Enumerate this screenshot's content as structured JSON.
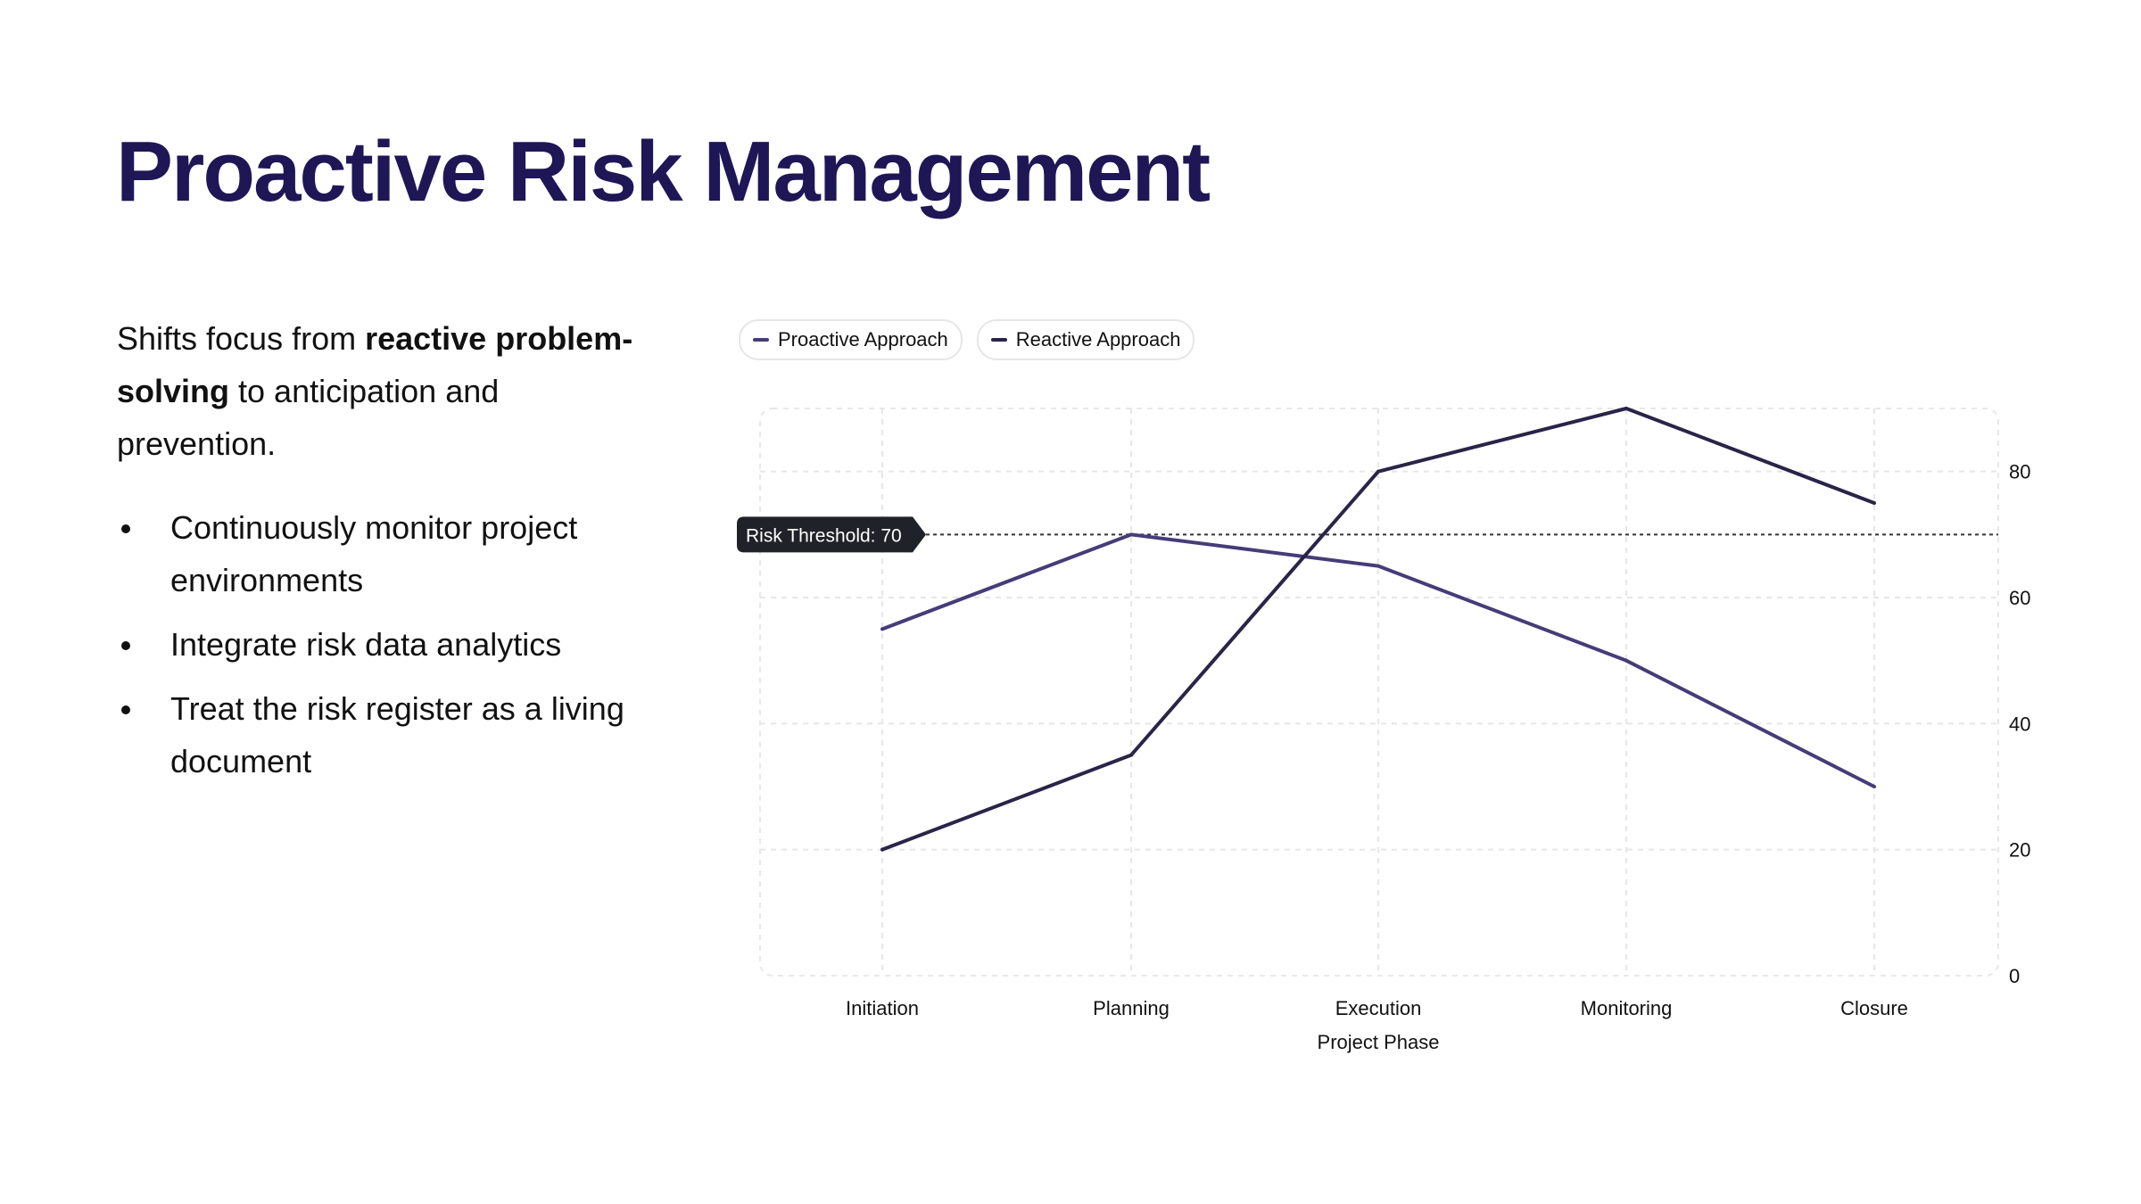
{
  "title": "Proactive Risk Management",
  "intro": {
    "pre": "Shifts focus from ",
    "bold": "reactive problem-solving",
    "post": " to anticipation and prevention."
  },
  "bullets": [
    "Continuously monitor project environments",
    "Integrate risk data analytics",
    "Treat the risk register as a living document"
  ],
  "chart_data": {
    "type": "line",
    "categories": [
      "Initiation",
      "Planning",
      "Execution",
      "Monitoring",
      "Closure"
    ],
    "series": [
      {
        "name": "Proactive Approach",
        "values": [
          55,
          70,
          65,
          50,
          30
        ],
        "color": "#463c78"
      },
      {
        "name": "Reactive Approach",
        "values": [
          20,
          35,
          80,
          90,
          75
        ],
        "color": "#2a2448"
      }
    ],
    "xlabel": "Project Phase",
    "ylabel": "",
    "ylim": [
      0,
      90
    ],
    "yticks": [
      0,
      20,
      40,
      60,
      80
    ],
    "y_axis_side": "right",
    "grid": true,
    "legend": "top-left",
    "threshold": {
      "value": 70,
      "label": "Risk Threshold: 70"
    }
  }
}
